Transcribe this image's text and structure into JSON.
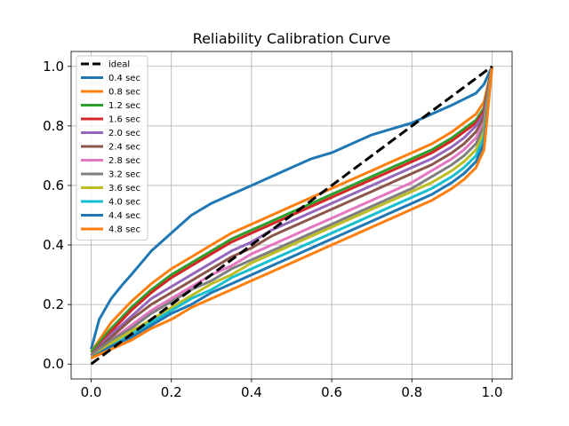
{
  "chart_data": {
    "type": "line",
    "title": "Reliability Calibration Curve",
    "xlabel": "",
    "ylabel": "",
    "xlim": [
      -0.05,
      1.05
    ],
    "ylim": [
      -0.05,
      1.05
    ],
    "x_ticks": [
      0.0,
      0.2,
      0.4,
      0.6,
      0.8,
      1.0
    ],
    "y_ticks": [
      0.0,
      0.2,
      0.4,
      0.6,
      0.8,
      1.0
    ],
    "x_tick_labels": [
      "0.0",
      "0.2",
      "0.4",
      "0.6",
      "0.8",
      "1.0"
    ],
    "y_tick_labels": [
      "0.0",
      "0.2",
      "0.4",
      "0.6",
      "0.8",
      "1.0"
    ],
    "grid": true,
    "legend_position": "upper-left",
    "series": [
      {
        "name": "ideal",
        "color": "#000000",
        "dashed": true,
        "x": [
          0.0,
          1.0
        ],
        "y": [
          0.0,
          1.0
        ]
      },
      {
        "name": "0.4 sec",
        "color": "#1f77b4",
        "x": [
          0.0,
          0.02,
          0.05,
          0.08,
          0.1,
          0.15,
          0.2,
          0.25,
          0.3,
          0.35,
          0.4,
          0.45,
          0.5,
          0.55,
          0.6,
          0.65,
          0.7,
          0.75,
          0.8,
          0.85,
          0.9,
          0.93,
          0.96,
          0.98,
          1.0
        ],
        "y": [
          0.05,
          0.15,
          0.22,
          0.27,
          0.3,
          0.38,
          0.44,
          0.5,
          0.54,
          0.57,
          0.6,
          0.63,
          0.66,
          0.69,
          0.71,
          0.74,
          0.77,
          0.79,
          0.81,
          0.84,
          0.87,
          0.89,
          0.91,
          0.94,
          1.0
        ]
      },
      {
        "name": "0.8 sec",
        "color": "#ff7f0e",
        "x": [
          0.0,
          0.05,
          0.1,
          0.15,
          0.2,
          0.25,
          0.3,
          0.35,
          0.4,
          0.45,
          0.5,
          0.55,
          0.6,
          0.65,
          0.7,
          0.75,
          0.8,
          0.85,
          0.9,
          0.93,
          0.96,
          0.98,
          1.0
        ],
        "y": [
          0.04,
          0.14,
          0.21,
          0.27,
          0.32,
          0.36,
          0.4,
          0.44,
          0.47,
          0.5,
          0.53,
          0.56,
          0.59,
          0.62,
          0.65,
          0.68,
          0.71,
          0.74,
          0.78,
          0.81,
          0.84,
          0.88,
          1.0
        ]
      },
      {
        "name": "1.2 sec",
        "color": "#2ca02c",
        "x": [
          0.0,
          0.05,
          0.1,
          0.15,
          0.2,
          0.25,
          0.3,
          0.35,
          0.4,
          0.45,
          0.5,
          0.55,
          0.6,
          0.65,
          0.7,
          0.75,
          0.8,
          0.85,
          0.9,
          0.93,
          0.96,
          0.98,
          1.0
        ],
        "y": [
          0.04,
          0.12,
          0.19,
          0.25,
          0.3,
          0.34,
          0.38,
          0.42,
          0.45,
          0.48,
          0.51,
          0.54,
          0.57,
          0.6,
          0.63,
          0.66,
          0.69,
          0.72,
          0.76,
          0.79,
          0.82,
          0.86,
          1.0
        ]
      },
      {
        "name": "1.6 sec",
        "color": "#d62728",
        "x": [
          0.0,
          0.05,
          0.1,
          0.15,
          0.2,
          0.25,
          0.3,
          0.35,
          0.4,
          0.45,
          0.5,
          0.55,
          0.6,
          0.65,
          0.7,
          0.75,
          0.8,
          0.85,
          0.9,
          0.93,
          0.96,
          0.98,
          1.0
        ],
        "y": [
          0.03,
          0.11,
          0.18,
          0.24,
          0.29,
          0.33,
          0.37,
          0.41,
          0.44,
          0.47,
          0.5,
          0.53,
          0.56,
          0.59,
          0.62,
          0.65,
          0.68,
          0.71,
          0.75,
          0.78,
          0.81,
          0.85,
          1.0
        ]
      },
      {
        "name": "2.0 sec",
        "color": "#9467bd",
        "x": [
          0.0,
          0.05,
          0.1,
          0.15,
          0.2,
          0.25,
          0.3,
          0.35,
          0.4,
          0.45,
          0.5,
          0.55,
          0.6,
          0.65,
          0.7,
          0.75,
          0.8,
          0.85,
          0.9,
          0.93,
          0.96,
          0.98,
          1.0
        ],
        "y": [
          0.03,
          0.1,
          0.16,
          0.22,
          0.26,
          0.3,
          0.34,
          0.38,
          0.41,
          0.45,
          0.48,
          0.51,
          0.54,
          0.57,
          0.6,
          0.63,
          0.66,
          0.69,
          0.73,
          0.76,
          0.8,
          0.84,
          1.0
        ]
      },
      {
        "name": "2.4 sec",
        "color": "#8c564b",
        "x": [
          0.0,
          0.05,
          0.1,
          0.15,
          0.2,
          0.25,
          0.3,
          0.35,
          0.4,
          0.45,
          0.5,
          0.55,
          0.6,
          0.65,
          0.7,
          0.75,
          0.8,
          0.85,
          0.9,
          0.93,
          0.96,
          0.98,
          1.0
        ],
        "y": [
          0.03,
          0.09,
          0.15,
          0.2,
          0.24,
          0.28,
          0.32,
          0.36,
          0.39,
          0.43,
          0.46,
          0.49,
          0.52,
          0.55,
          0.58,
          0.61,
          0.64,
          0.67,
          0.71,
          0.74,
          0.78,
          0.83,
          1.0
        ]
      },
      {
        "name": "2.8 sec",
        "color": "#e377c2",
        "x": [
          0.0,
          0.05,
          0.1,
          0.15,
          0.2,
          0.25,
          0.3,
          0.35,
          0.4,
          0.45,
          0.5,
          0.55,
          0.6,
          0.65,
          0.7,
          0.75,
          0.8,
          0.85,
          0.9,
          0.93,
          0.96,
          0.98,
          1.0
        ],
        "y": [
          0.03,
          0.08,
          0.13,
          0.18,
          0.22,
          0.26,
          0.3,
          0.33,
          0.37,
          0.4,
          0.43,
          0.46,
          0.49,
          0.52,
          0.55,
          0.58,
          0.61,
          0.65,
          0.69,
          0.72,
          0.76,
          0.81,
          1.0
        ]
      },
      {
        "name": "3.2 sec",
        "color": "#7f7f7f",
        "x": [
          0.0,
          0.05,
          0.1,
          0.15,
          0.2,
          0.25,
          0.3,
          0.35,
          0.4,
          0.45,
          0.5,
          0.55,
          0.6,
          0.65,
          0.7,
          0.75,
          0.8,
          0.85,
          0.9,
          0.93,
          0.96,
          0.98,
          1.0
        ],
        "y": [
          0.03,
          0.08,
          0.12,
          0.17,
          0.21,
          0.25,
          0.28,
          0.32,
          0.35,
          0.38,
          0.41,
          0.44,
          0.47,
          0.5,
          0.53,
          0.56,
          0.59,
          0.63,
          0.67,
          0.7,
          0.74,
          0.8,
          1.0
        ]
      },
      {
        "name": "3.6 sec",
        "color": "#bcbd22",
        "x": [
          0.0,
          0.05,
          0.1,
          0.15,
          0.2,
          0.25,
          0.3,
          0.35,
          0.4,
          0.45,
          0.5,
          0.55,
          0.6,
          0.65,
          0.7,
          0.75,
          0.8,
          0.85,
          0.9,
          0.93,
          0.96,
          0.98,
          1.0
        ],
        "y": [
          0.02,
          0.07,
          0.11,
          0.15,
          0.19,
          0.23,
          0.27,
          0.3,
          0.34,
          0.37,
          0.4,
          0.43,
          0.46,
          0.49,
          0.52,
          0.55,
          0.58,
          0.61,
          0.65,
          0.68,
          0.72,
          0.78,
          1.0
        ]
      },
      {
        "name": "4.0 sec",
        "color": "#17becf",
        "x": [
          0.0,
          0.05,
          0.1,
          0.15,
          0.2,
          0.25,
          0.3,
          0.35,
          0.4,
          0.45,
          0.5,
          0.55,
          0.6,
          0.65,
          0.7,
          0.75,
          0.8,
          0.85,
          0.9,
          0.93,
          0.96,
          0.98,
          1.0
        ],
        "y": [
          0.02,
          0.06,
          0.1,
          0.14,
          0.18,
          0.22,
          0.25,
          0.29,
          0.32,
          0.35,
          0.38,
          0.41,
          0.44,
          0.47,
          0.5,
          0.53,
          0.56,
          0.59,
          0.63,
          0.66,
          0.7,
          0.76,
          1.0
        ]
      },
      {
        "name": "4.4 sec",
        "color": "#1f77b4",
        "x": [
          0.0,
          0.05,
          0.1,
          0.15,
          0.2,
          0.25,
          0.3,
          0.35,
          0.4,
          0.45,
          0.5,
          0.55,
          0.6,
          0.65,
          0.7,
          0.75,
          0.8,
          0.85,
          0.9,
          0.93,
          0.96,
          0.98,
          1.0
        ],
        "y": [
          0.02,
          0.06,
          0.09,
          0.13,
          0.17,
          0.2,
          0.24,
          0.27,
          0.3,
          0.33,
          0.36,
          0.39,
          0.42,
          0.45,
          0.48,
          0.51,
          0.54,
          0.57,
          0.61,
          0.64,
          0.68,
          0.74,
          1.0
        ]
      },
      {
        "name": "4.8 sec",
        "color": "#ff7f0e",
        "x": [
          0.0,
          0.05,
          0.1,
          0.15,
          0.2,
          0.25,
          0.3,
          0.35,
          0.4,
          0.45,
          0.5,
          0.55,
          0.6,
          0.65,
          0.7,
          0.75,
          0.8,
          0.85,
          0.9,
          0.93,
          0.96,
          0.98,
          1.0
        ],
        "y": [
          0.02,
          0.05,
          0.08,
          0.12,
          0.15,
          0.19,
          0.22,
          0.25,
          0.28,
          0.31,
          0.34,
          0.37,
          0.4,
          0.43,
          0.46,
          0.49,
          0.52,
          0.55,
          0.59,
          0.62,
          0.66,
          0.72,
          1.0
        ]
      }
    ]
  }
}
